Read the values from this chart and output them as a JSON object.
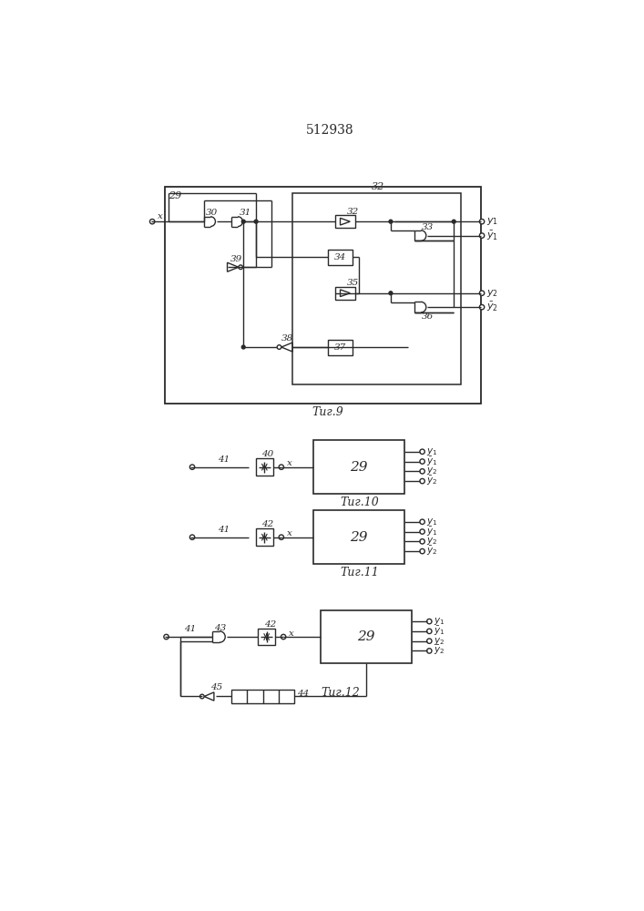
{
  "title": "512938",
  "line_color": "#2a2a2a",
  "fig9_label": "Τиг.9",
  "fig10_label": "Τиг.10",
  "fig11_label": "Τиг.11",
  "fig12_label": "Τиг.12"
}
